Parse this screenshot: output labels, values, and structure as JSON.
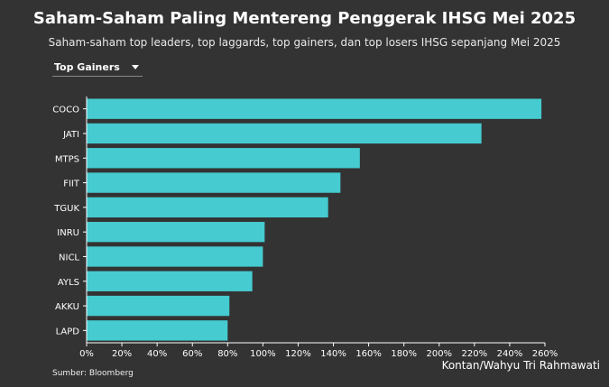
{
  "header": {
    "title": "Saham-Saham Paling Mentereng Penggerak IHSG Mei 2025",
    "subtitle": "Saham-saham top leaders, top laggards, top gainers, dan top losers IHSG sepanjang Mei 2025"
  },
  "filter": {
    "selected": "Top Gainers"
  },
  "footer": {
    "source": "Sumber:  Bloomberg",
    "credit": "Kontan/Wahyu Tri Rahmawati"
  },
  "colors": {
    "bar": "#45CBD0",
    "background": "#333333",
    "axis": "#ffffff"
  },
  "chart_data": {
    "type": "bar",
    "orientation": "horizontal",
    "categories": [
      "COCO",
      "JATI",
      "MTPS",
      "FIIT",
      "TGUK",
      "INRU",
      "NICL",
      "AYLS",
      "AKKU",
      "LAPD"
    ],
    "values": [
      258,
      224,
      155,
      144,
      137,
      101,
      100,
      94,
      81,
      80
    ],
    "xlim": [
      0,
      260
    ],
    "x_ticks": [
      "0%",
      "20%",
      "40%",
      "60%",
      "80%",
      "100%",
      "120%",
      "140%",
      "160%",
      "180%",
      "200%",
      "220%",
      "240%",
      "260%"
    ],
    "x_tick_values": [
      0,
      20,
      40,
      60,
      80,
      100,
      120,
      140,
      160,
      180,
      200,
      220,
      240,
      260
    ],
    "grid": false,
    "legend": "none"
  }
}
